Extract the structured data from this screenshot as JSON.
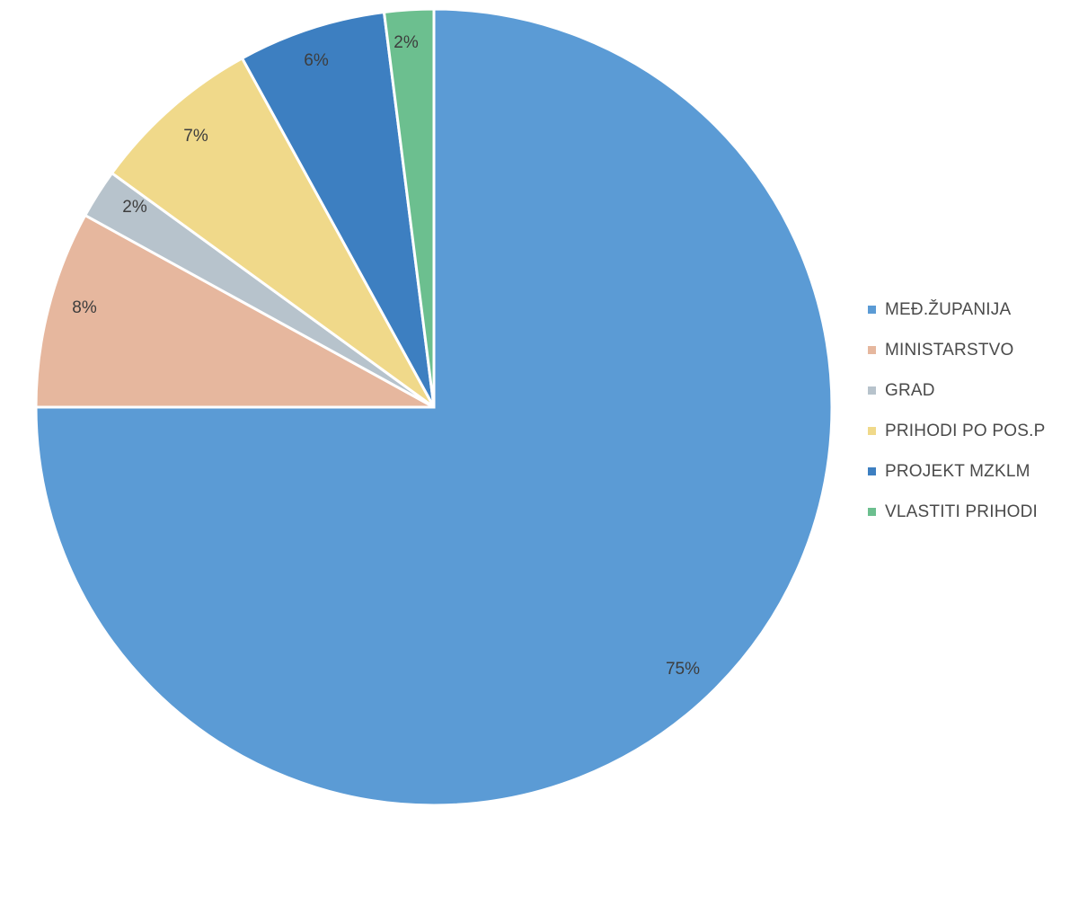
{
  "chart_data": {
    "type": "pie",
    "title": "",
    "start_angle_deg": 0,
    "direction": "clockwise",
    "legend_position": "right",
    "slices": [
      {
        "label": "MEĐ.ŽUPANIJA",
        "value": 75,
        "display": "75%",
        "color": "#5b9bd5"
      },
      {
        "label": "MINISTARSTVO",
        "value": 8,
        "display": "8%",
        "color": "#e6b79e"
      },
      {
        "label": "GRAD",
        "value": 2,
        "display": "2%",
        "color": "#b7c3cc"
      },
      {
        "label": "PRIHODI PO POS.P",
        "value": 7,
        "display": "7%",
        "color": "#f0d98a"
      },
      {
        "label": "PROJEKT MZKLM",
        "value": 6,
        "display": "6%",
        "color": "#3d7fc1"
      },
      {
        "label": "VLASTITI PRIHODI",
        "value": 2,
        "display": "2%",
        "color": "#6cbf8f"
      }
    ]
  }
}
